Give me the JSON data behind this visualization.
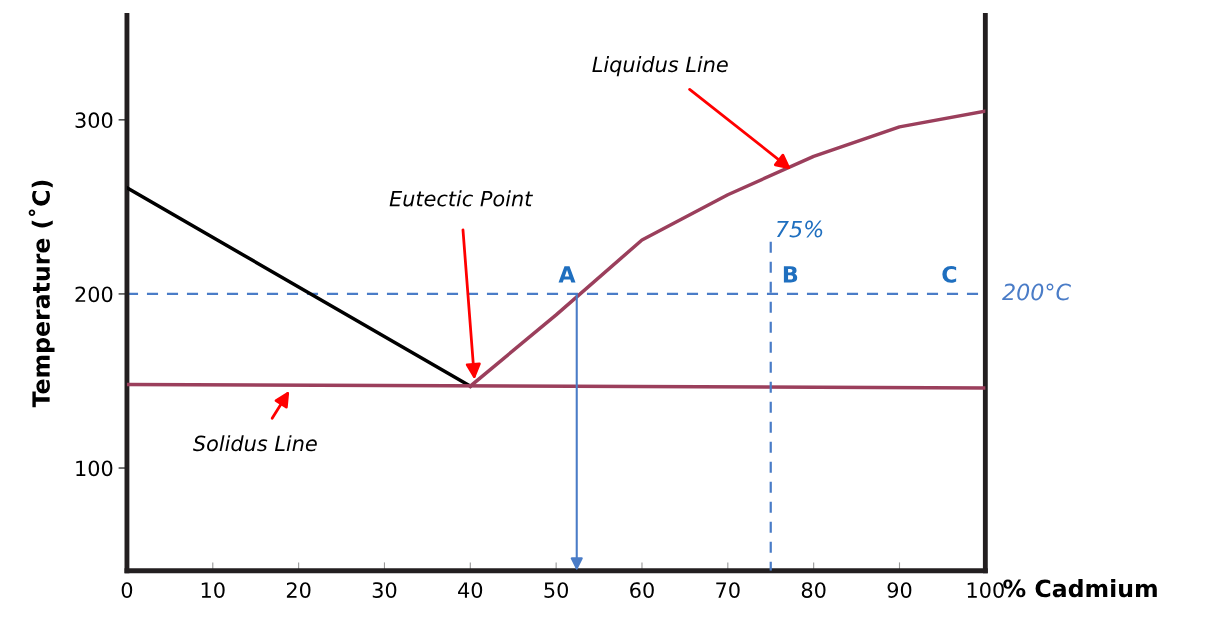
{
  "chart_data": {
    "type": "line",
    "xlabel": "% Cadmium",
    "ylabel": "Temperature (˚C)",
    "xlim": [
      0,
      100
    ],
    "ylim": [
      41,
      360
    ],
    "xticks": [
      0,
      10,
      20,
      30,
      40,
      50,
      60,
      70,
      80,
      90,
      100
    ],
    "yticks": [
      100,
      200,
      300
    ],
    "grid": false,
    "marker": "none",
    "series": [
      {
        "color": "#000000",
        "x": [
          0,
          40
        ],
        "values": [
          261,
          147
        ]
      },
      {
        "color": "#9b3f5c",
        "x": [
          40,
          50,
          60,
          70,
          80,
          90,
          100
        ],
        "values": [
          147,
          188,
          231,
          257,
          279,
          296,
          305
        ]
      },
      {
        "color": "#9b3f5c",
        "x": [
          0,
          100
        ],
        "values": [
          148,
          146
        ]
      },
      {
        "color": "#4a7cc7",
        "line_style": "dashed",
        "x": [
          75,
          75
        ],
        "values": [
          230,
          41
        ]
      }
    ],
    "ref_lines": [
      {
        "axis": "y",
        "value": 200,
        "label": "200°C",
        "color": "#4a7cc7",
        "line_style": "dashed"
      }
    ],
    "annotations": [
      {
        "text": "Liquidus Line",
        "x": 77.5,
        "y": 271
      },
      {
        "text": "Eutectic Point",
        "x": 40.5,
        "y": 150
      },
      {
        "text": "Solidus Line",
        "x": 19,
        "y": 145
      },
      {
        "text": "A",
        "x": 52.4,
        "y": 200
      },
      {
        "text": "B",
        "x": 75,
        "y": 200
      },
      {
        "text": "C",
        "x": 100,
        "y": 200
      },
      {
        "text": "75%",
        "x": 75,
        "y": 230
      }
    ]
  }
}
